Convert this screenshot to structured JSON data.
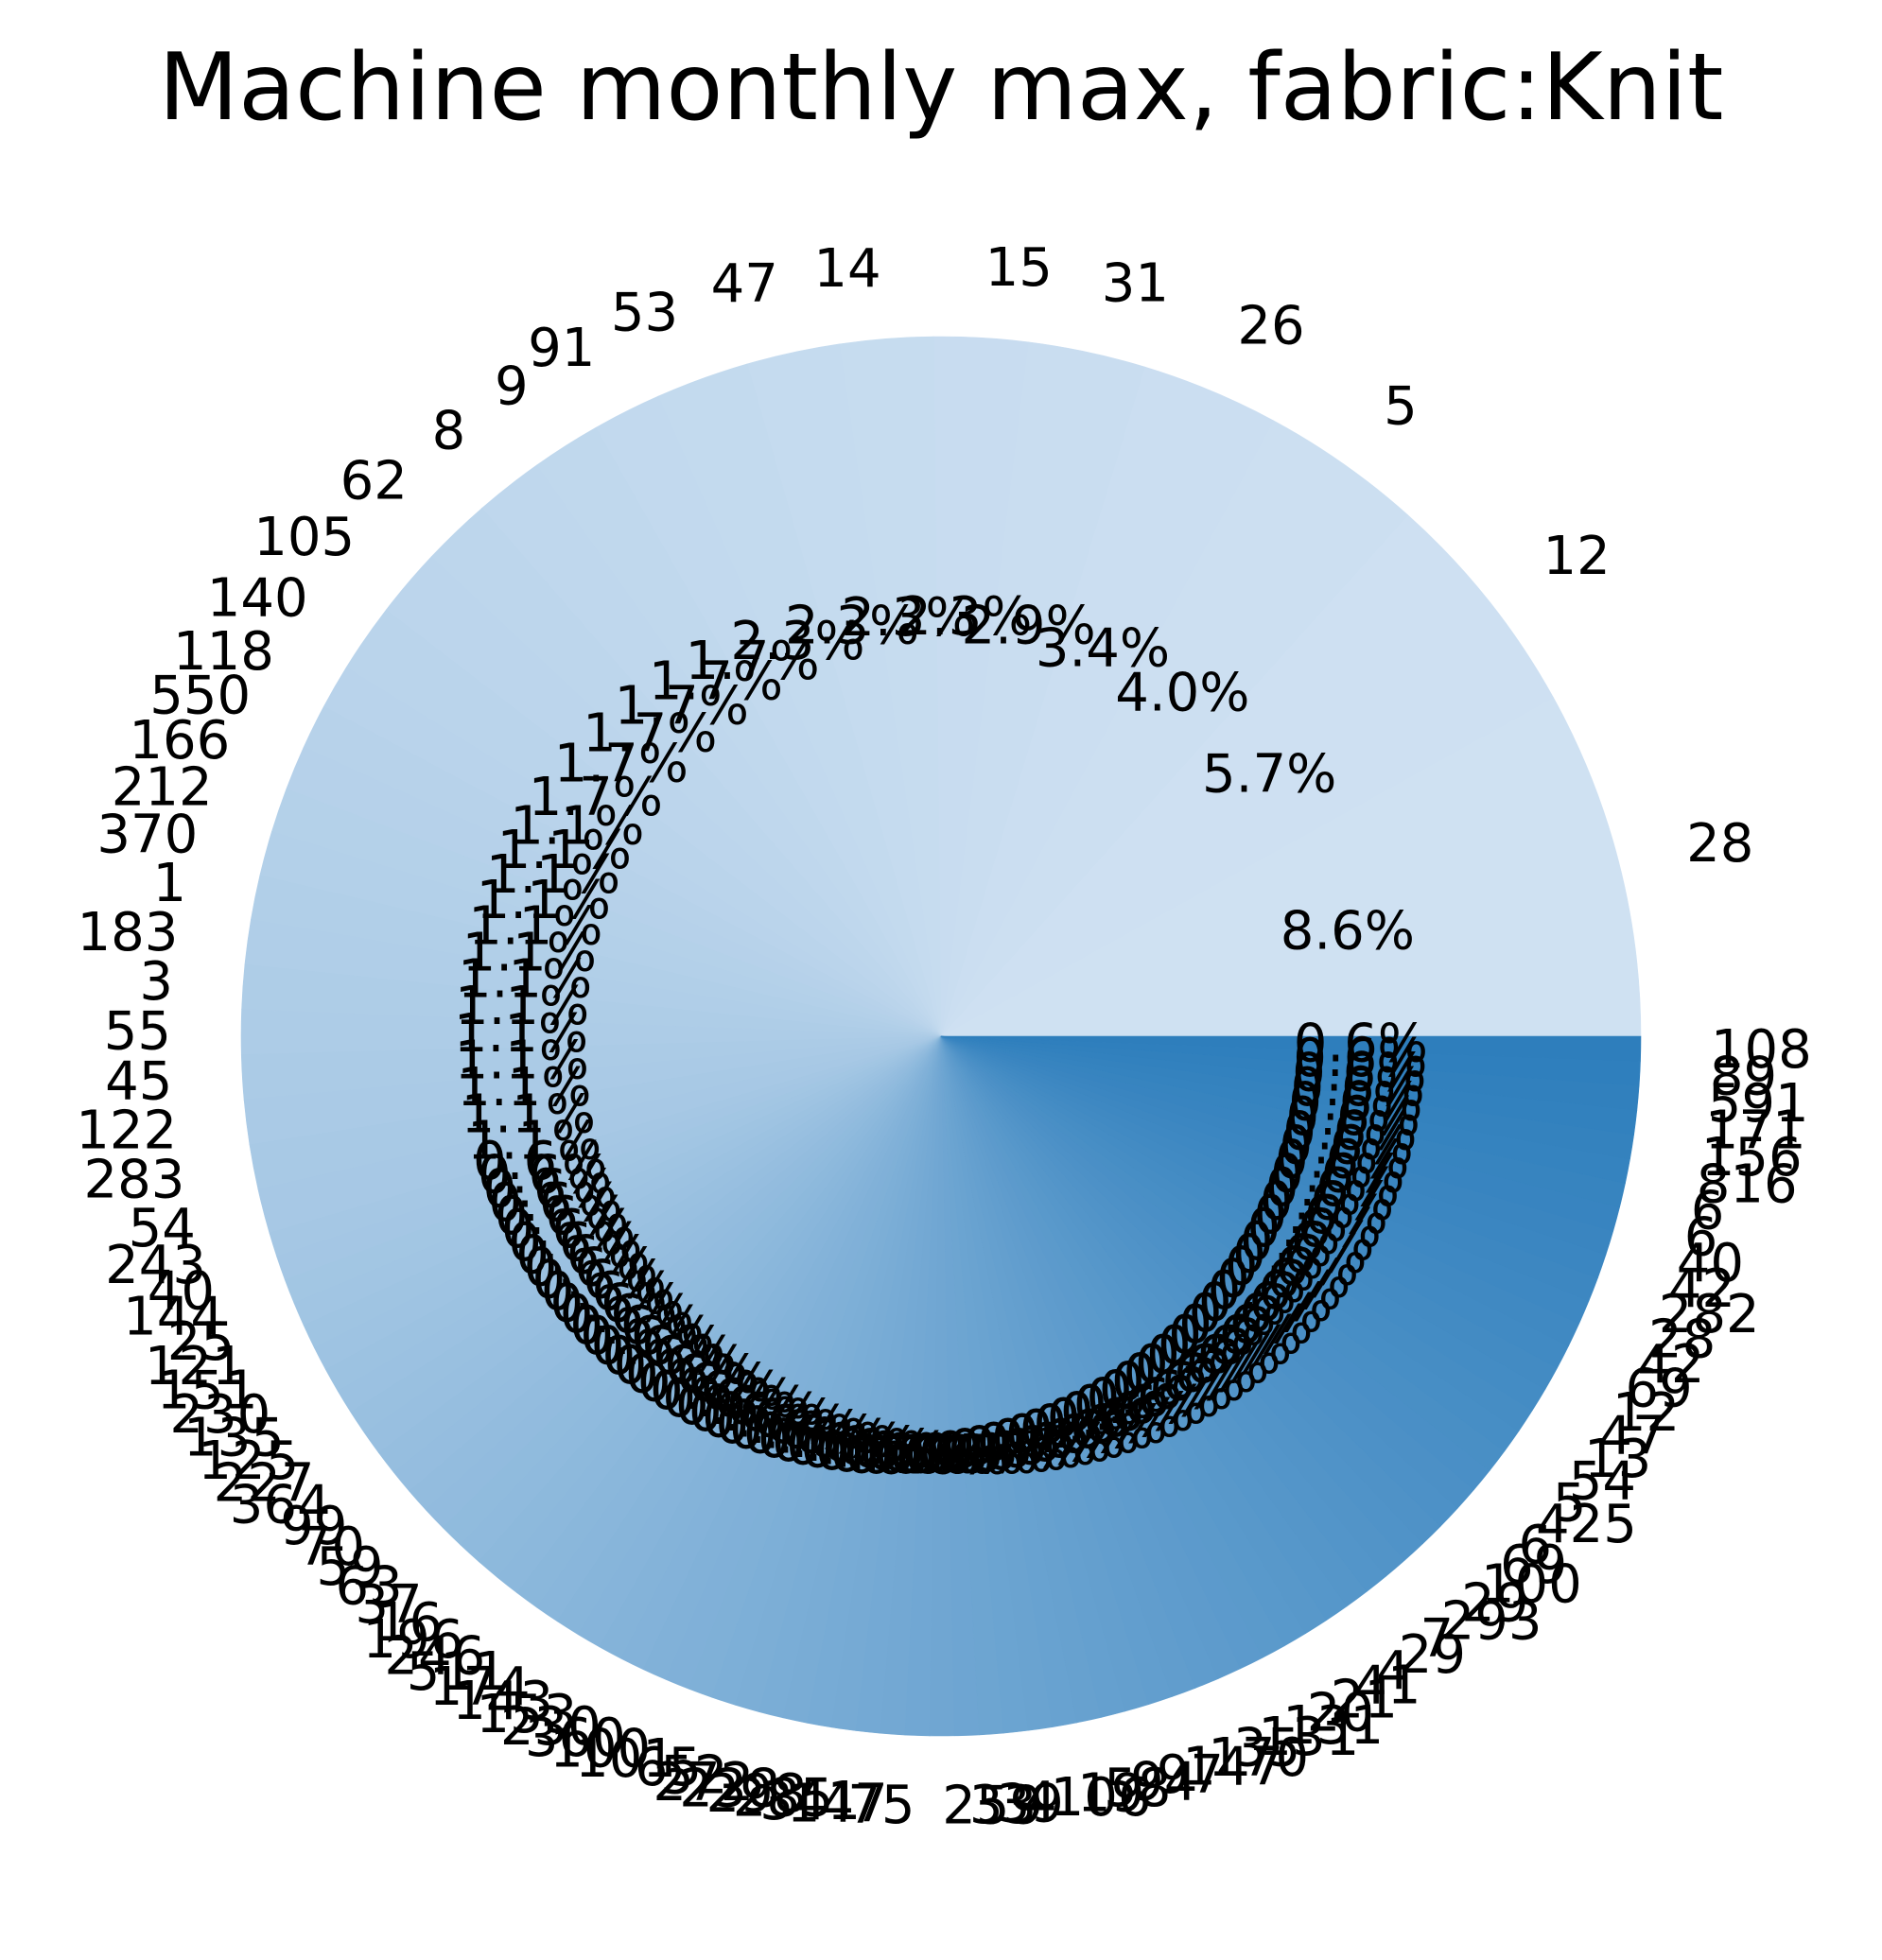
{
  "chart_data": {
    "type": "pie",
    "title": "Machine monthly max, fabric:Knit",
    "start_angle_deg": 0,
    "direction": "counterclockwise",
    "color_scale": [
      "#cfe1f2",
      "#2e7ebc"
    ],
    "slices": [
      {
        "label": "28",
        "pct": "8.6%",
        "value": 8.6
      },
      {
        "label": "12",
        "pct": "5.7%",
        "value": 5.7
      },
      {
        "label": "5",
        "pct": "4.0%",
        "value": 4.0
      },
      {
        "label": "26",
        "pct": "3.4%",
        "value": 3.4
      },
      {
        "label": "31",
        "pct": "2.9%",
        "value": 2.9
      },
      {
        "label": "15",
        "pct": "2.3%",
        "value": 2.3
      },
      {
        "label": "14",
        "pct": "2.3%",
        "value": 2.3
      },
      {
        "label": "47",
        "pct": "2.3%",
        "value": 2.3
      },
      {
        "label": "53",
        "pct": "2.3%",
        "value": 2.3
      },
      {
        "label": "91",
        "pct": "1.7%",
        "value": 1.7
      },
      {
        "label": "9",
        "pct": "1.7%",
        "value": 1.7
      },
      {
        "label": "8",
        "pct": "1.7%",
        "value": 1.7
      },
      {
        "label": "62",
        "pct": "1.7%",
        "value": 1.7
      },
      {
        "label": "105",
        "pct": "1.7%",
        "value": 1.7
      },
      {
        "label": "140",
        "pct": "1.7%",
        "value": 1.7
      },
      {
        "label": "118",
        "pct": "1.1%",
        "value": 1.1
      },
      {
        "label": "550",
        "pct": "1.1%",
        "value": 1.1
      },
      {
        "label": "166",
        "pct": "1.1%",
        "value": 1.1
      },
      {
        "label": "212",
        "pct": "1.1%",
        "value": 1.1
      },
      {
        "label": "370",
        "pct": "1.1%",
        "value": 1.1
      },
      {
        "label": "1",
        "pct": "1.1%",
        "value": 1.1
      },
      {
        "label": "183",
        "pct": "1.1%",
        "value": 1.1
      },
      {
        "label": "3",
        "pct": "1.1%",
        "value": 1.1
      },
      {
        "label": "55",
        "pct": "1.1%",
        "value": 1.1
      },
      {
        "label": "45",
        "pct": "1.1%",
        "value": 1.1
      },
      {
        "label": "122",
        "pct": "1.1%",
        "value": 1.1
      },
      {
        "label": "283",
        "pct": "1.1%",
        "value": 1.1
      },
      {
        "label": "54",
        "pct": "1.1%",
        "value": 1.1
      },
      {
        "label": "243",
        "pct": "0.6%",
        "value": 0.6
      },
      {
        "label": "40",
        "pct": "0.6%",
        "value": 0.6
      },
      {
        "label": "144",
        "pct": "0.6%",
        "value": 0.6
      },
      {
        "label": "25",
        "pct": "0.6%",
        "value": 0.6
      },
      {
        "label": "121",
        "pct": "0.6%",
        "value": 0.6
      },
      {
        "label": "151",
        "pct": "0.6%",
        "value": 0.6
      },
      {
        "label": "230",
        "pct": "0.6%",
        "value": 0.6
      },
      {
        "label": "135",
        "pct": "0.6%",
        "value": 0.6
      },
      {
        "label": "125",
        "pct": "0.6%",
        "value": 0.6
      },
      {
        "label": "227",
        "pct": "0.6%",
        "value": 0.6
      },
      {
        "label": "364",
        "pct": "0.6%",
        "value": 0.6
      },
      {
        "label": "99",
        "pct": "0.6%",
        "value": 0.6
      },
      {
        "label": "70",
        "pct": "0.6%",
        "value": 0.6
      },
      {
        "label": "59",
        "pct": "0.6%",
        "value": 0.6
      },
      {
        "label": "63",
        "pct": "0.6%",
        "value": 0.6
      },
      {
        "label": "37",
        "pct": "0.6%",
        "value": 0.6
      },
      {
        "label": "16",
        "pct": "0.6%",
        "value": 0.6
      },
      {
        "label": "196",
        "pct": "0.6%",
        "value": 0.6
      },
      {
        "label": "246",
        "pct": "0.6%",
        "value": 0.6
      },
      {
        "label": "511",
        "pct": "0.6%",
        "value": 0.6
      },
      {
        "label": "174",
        "pct": "0.6%",
        "value": 0.6
      },
      {
        "label": "143",
        "pct": "0.6%",
        "value": 0.6
      },
      {
        "label": "153",
        "pct": "0.6%",
        "value": 0.6
      },
      {
        "label": "230",
        "pct": "0.6%",
        "value": 0.6
      },
      {
        "label": "360",
        "pct": "0.6%",
        "value": 0.6
      },
      {
        "label": "100",
        "pct": "0.6%",
        "value": 0.6
      },
      {
        "label": "101",
        "pct": "0.6%",
        "value": 0.6
      },
      {
        "label": "65",
        "pct": "0.6%",
        "value": 0.6
      },
      {
        "label": "52",
        "pct": "0.6%",
        "value": 0.6
      },
      {
        "label": "272",
        "pct": "0.6%",
        "value": 0.6
      },
      {
        "label": "238",
        "pct": "0.6%",
        "value": 0.6
      },
      {
        "label": "298",
        "pct": "0.6%",
        "value": 0.6
      },
      {
        "label": "285",
        "pct": "0.6%",
        "value": 0.6
      },
      {
        "label": "341",
        "pct": "0.6%",
        "value": 0.6
      },
      {
        "label": "147",
        "pct": "0.6%",
        "value": 0.6
      },
      {
        "label": "75",
        "pct": "0.6%",
        "value": 0.6
      },
      {
        "label": "259",
        "pct": "0.6%",
        "value": 0.6
      },
      {
        "label": "33",
        "pct": "0.6%",
        "value": 0.6
      },
      {
        "label": "39",
        "pct": "0.6%",
        "value": 0.6
      },
      {
        "label": "4",
        "pct": "0.6%",
        "value": 0.6
      },
      {
        "label": "106",
        "pct": "0.6%",
        "value": 0.6
      },
      {
        "label": "19",
        "pct": "0.6%",
        "value": 0.6
      },
      {
        "label": "58",
        "pct": "0.6%",
        "value": 0.6
      },
      {
        "label": "94",
        "pct": "0.6%",
        "value": 0.6
      },
      {
        "label": "97",
        "pct": "0.6%",
        "value": 0.6
      },
      {
        "label": "147",
        "pct": "0.6%",
        "value": 0.6
      },
      {
        "label": "170",
        "pct": "0.6%",
        "value": 0.6
      },
      {
        "label": "35",
        "pct": "0.6%",
        "value": 0.6
      },
      {
        "label": "131",
        "pct": "0.6%",
        "value": 0.6
      },
      {
        "label": "131",
        "pct": "0.6%",
        "value": 0.6
      },
      {
        "label": "20",
        "pct": "0.6%",
        "value": 0.6
      },
      {
        "label": "21",
        "pct": "0.6%",
        "value": 0.6
      },
      {
        "label": "41",
        "pct": "0.6%",
        "value": 0.6
      },
      {
        "label": "4",
        "pct": "0.6%",
        "value": 0.6
      },
      {
        "label": "29",
        "pct": "0.6%",
        "value": 0.6
      },
      {
        "label": "7",
        "pct": "0.6%",
        "value": 0.6
      },
      {
        "label": "293",
        "pct": "0.6%",
        "value": 0.6
      },
      {
        "label": "29",
        "pct": "0.6%",
        "value": 0.6
      },
      {
        "label": "100",
        "pct": "0.6%",
        "value": 0.6
      },
      {
        "label": "69",
        "pct": "0.6%",
        "value": 0.6
      },
      {
        "label": "6",
        "pct": "0.6%",
        "value": 0.6
      },
      {
        "label": "425",
        "pct": "0.6%",
        "value": 0.6
      },
      {
        "label": "5",
        "pct": "0.6%",
        "value": 0.6
      },
      {
        "label": "54",
        "pct": "0.6%",
        "value": 0.6
      },
      {
        "label": "13",
        "pct": "0.6%",
        "value": 0.6
      },
      {
        "label": "47",
        "pct": "0.6%",
        "value": 0.6
      },
      {
        "label": "12",
        "pct": "0.6%",
        "value": 0.6
      },
      {
        "label": "69",
        "pct": "0.6%",
        "value": 0.6
      },
      {
        "label": "42",
        "pct": "0.6%",
        "value": 0.6
      },
      {
        "label": "28",
        "pct": "0.6%",
        "value": 0.6
      },
      {
        "label": "282",
        "pct": "0.6%",
        "value": 0.6
      },
      {
        "label": "42",
        "pct": "0.6%",
        "value": 0.6
      },
      {
        "label": "40",
        "pct": "0.6%",
        "value": 0.6
      },
      {
        "label": "6",
        "pct": "0.6%",
        "value": 0.6
      },
      {
        "label": "6",
        "pct": "0.6%",
        "value": 0.6
      },
      {
        "label": "816",
        "pct": "0.6%",
        "value": 0.6
      },
      {
        "label": "156",
        "pct": "0.6%",
        "value": 0.6
      },
      {
        "label": "171",
        "pct": "0.6%",
        "value": 0.6
      },
      {
        "label": "591",
        "pct": "0.6%",
        "value": 0.6
      },
      {
        "label": "89",
        "pct": "0.6%",
        "value": 0.6
      },
      {
        "label": "108",
        "pct": "0.6%",
        "value": 0.6
      }
    ]
  }
}
